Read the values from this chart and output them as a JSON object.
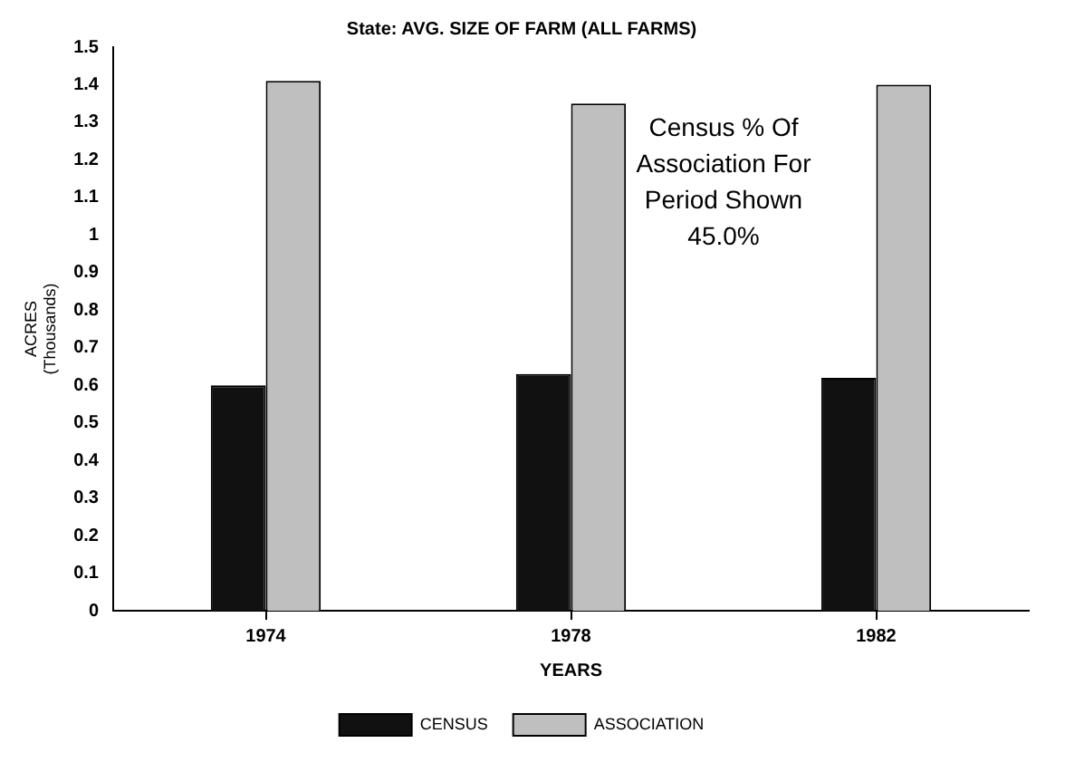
{
  "chart_data": {
    "type": "bar",
    "title": "State: AVG. SIZE OF FARM (ALL FARMS)",
    "xlabel": "YEARS",
    "ylabel": "ACRES (Thousands)",
    "categories": [
      "1974",
      "1978",
      "1982"
    ],
    "series": [
      {
        "name": "CENSUS",
        "color": "#111111",
        "values": [
          0.6,
          0.63,
          0.62
        ]
      },
      {
        "name": "ASSOCIATION",
        "color": "#bfbfbf",
        "values": [
          1.41,
          1.35,
          1.4
        ]
      }
    ],
    "ylim": [
      0,
      1.5
    ],
    "yticks": [
      0,
      0.1,
      0.2,
      0.3,
      0.4,
      0.5,
      0.6,
      0.7,
      0.8,
      0.9,
      1,
      1.1,
      1.2,
      1.3,
      1.4,
      1.5
    ],
    "grid": false,
    "legend": "bottom",
    "annotations": [
      "Census % Of Association For Period Shown 45.0%"
    ]
  }
}
